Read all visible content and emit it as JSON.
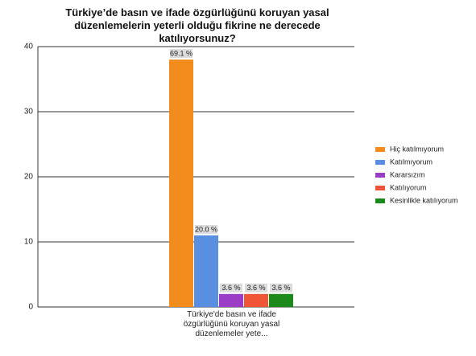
{
  "chart_data": {
    "type": "bar",
    "title": "Türkiye’de basın ve ifade özgürlüğünü koruyan yasal düzenlemelerin yeterli olduğu fikrine ne derecede katılıyorsunuz?",
    "categories": [
      "Türkiye'de basın ve ifade özgürlüğünü koruyan yasal düzenlemeler yete..."
    ],
    "series": [
      {
        "name": "Hiç katılmıyorum",
        "color": "#f28c1c",
        "values": [
          38
        ],
        "value_labels": [
          "69.1 %"
        ]
      },
      {
        "name": "Katılmıyorum",
        "color": "#5a8ee0",
        "values": [
          11
        ],
        "value_labels": [
          "20.0 %"
        ]
      },
      {
        "name": "Kararsızım",
        "color": "#9a3cc6",
        "values": [
          2
        ],
        "value_labels": [
          "3.6 %"
        ]
      },
      {
        "name": "Katılıyorum",
        "color": "#ef5536",
        "values": [
          2
        ],
        "value_labels": [
          "3.6 %"
        ]
      },
      {
        "name": "Kesinlikle katılıyorum",
        "color": "#1b8a1b",
        "values": [
          2
        ],
        "value_labels": [
          "3.6 %"
        ]
      }
    ],
    "ylim": [
      0,
      40
    ],
    "yticks": [
      0,
      10,
      20,
      30,
      40
    ],
    "grid": true,
    "legend": "right"
  }
}
